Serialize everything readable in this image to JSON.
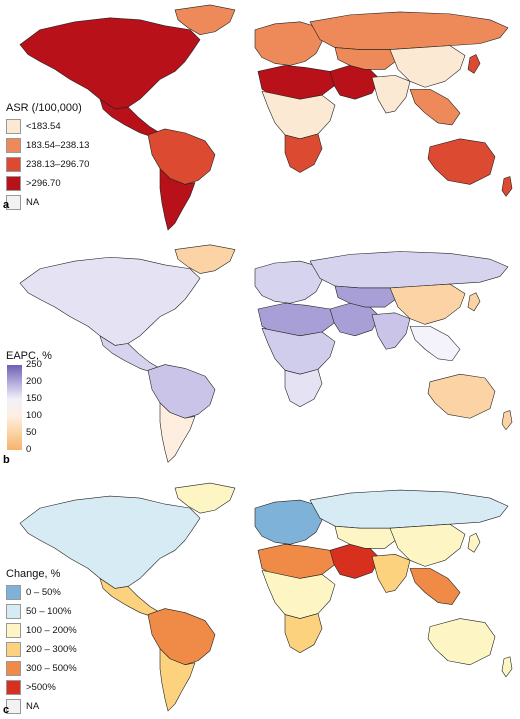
{
  "panels": [
    {
      "letter": "a",
      "legend_title": "ASR (/100,000)",
      "legend_type": "categorical",
      "categories": [
        {
          "label": "<183.54",
          "color": "#fce9d4"
        },
        {
          "label": "183.54–238.13",
          "color": "#ee8a5a"
        },
        {
          "label": "238.13–296.70",
          "color": "#dd4a32"
        },
        {
          "label": ">296.70",
          "color": "#b8111a"
        },
        {
          "label": "NA",
          "color": "#f2f2f2"
        }
      ]
    },
    {
      "letter": "b",
      "legend_title": "EAPC, %",
      "legend_type": "gradient",
      "ticks": [
        "250",
        "200",
        "150",
        "100",
        "50",
        "0"
      ],
      "gradient_colors": [
        "#6f5fb4",
        "#b0a9da",
        "#f2f0fa",
        "#fdf0e2",
        "#fbd3a4",
        "#f7b26d"
      ]
    },
    {
      "letter": "c",
      "legend_title": "Change, %",
      "legend_type": "categorical",
      "categories": [
        {
          "label": "0 – 50%",
          "color": "#7fb2d8"
        },
        {
          "label": "50 – 100%",
          "color": "#d6ebf4"
        },
        {
          "label": "100 – 200%",
          "color": "#fdf6c4"
        },
        {
          "label": "200 – 300%",
          "color": "#fcd27e"
        },
        {
          "label": "300 – 500%",
          "color": "#f08b47"
        },
        {
          "label": ">500%",
          "color": "#d7301f"
        },
        {
          "label": "NA",
          "color": "#f2f2f2"
        }
      ]
    }
  ],
  "regions": {
    "a": {
      "north_america": "#b8111a",
      "greenland": "#ee8a5a",
      "central_america": "#b8111a",
      "south_america_north": "#dd4a32",
      "south_america_south": "#b8111a",
      "europe": "#ee8a5a",
      "russia": "#ee8a5a",
      "north_africa": "#b8111a",
      "sub_saharan": "#fce9d4",
      "southern_africa": "#dd4a32",
      "middle_east": "#b8111a",
      "central_asia": "#ee8a5a",
      "south_asia": "#fce9d4",
      "east_asia": "#fce9d4",
      "southeast_asia": "#ee8a5a",
      "australia": "#dd4a32",
      "new_zealand": "#dd4a32",
      "japan": "#dd4a32"
    },
    "b": {
      "north_america": "#e4e2f3",
      "greenland": "#fbd3a4",
      "central_america": "#d6d3ee",
      "south_america_north": "#c9c4e8",
      "south_america_south": "#fdeee0",
      "europe": "#d6d3ee",
      "russia": "#d6d3ee",
      "north_africa": "#a79fd6",
      "sub_saharan": "#d0ccec",
      "southern_africa": "#e4e2f3",
      "middle_east": "#a79fd6",
      "central_asia": "#a79fd6",
      "south_asia": "#c9c4e8",
      "east_asia": "#fbd3a4",
      "southeast_asia": "#f4f2fa",
      "australia": "#fbd3a4",
      "new_zealand": "#fbd3a4",
      "japan": "#fbd3a4"
    },
    "c": {
      "north_america": "#d6ebf4",
      "greenland": "#fdf6c4",
      "central_america": "#fcd27e",
      "south_america_north": "#f08b47",
      "south_america_south": "#fcd27e",
      "europe": "#7fb2d8",
      "russia": "#d6ebf4",
      "north_africa": "#f08b47",
      "sub_saharan": "#fdf6c4",
      "southern_africa": "#fcd27e",
      "middle_east": "#d7301f",
      "central_asia": "#fdf6c4",
      "south_asia": "#fcd27e",
      "east_asia": "#fdf6c4",
      "southeast_asia": "#f08b47",
      "australia": "#fdf6c4",
      "new_zealand": "#fdf6c4",
      "japan": "#fdf6c4"
    }
  }
}
